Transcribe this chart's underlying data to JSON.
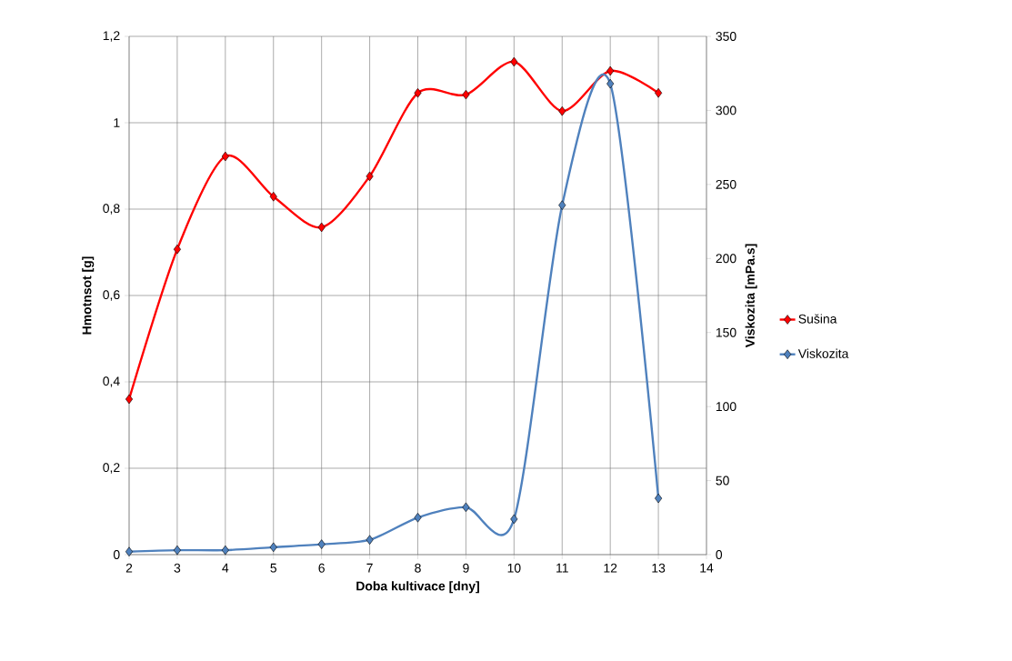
{
  "chart_data": {
    "type": "line",
    "xlabel": "Doba kultivace [dny]",
    "ylabel": "Hmotnsot [g]",
    "y2label": "Viskozita [mPa.s]",
    "x": [
      2,
      3,
      4,
      5,
      6,
      7,
      8,
      9,
      10,
      11,
      12,
      13
    ],
    "series": [
      {
        "name": "Sušina",
        "color": "#ff0000",
        "values": [
          0.36,
          0.707,
          0.922,
          0.829,
          0.758,
          0.876,
          1.069,
          1.065,
          1.141,
          1.027,
          1.12,
          1.069
        ]
      },
      {
        "name": "Viskozita",
        "color": "#4f81bd",
        "axis": "y2",
        "values": [
          2,
          3,
          3,
          5,
          7,
          10,
          25,
          32,
          24,
          236,
          318,
          38
        ]
      }
    ],
    "xlim": [
      2,
      14
    ],
    "xticks": [
      2,
      3,
      4,
      5,
      6,
      7,
      8,
      9,
      10,
      11,
      12,
      13,
      14
    ],
    "ylim": [
      0,
      1.2
    ],
    "yticks": [
      0,
      {
        "value": 0.2,
        "label": "0,2"
      },
      {
        "value": 0.4,
        "label": "0,4"
      },
      {
        "value": 0.6,
        "label": "0,6"
      },
      {
        "value": 0.8,
        "label": "0,8"
      },
      1,
      {
        "value": 1.2,
        "label": "1,2"
      }
    ],
    "y2lim": [
      0,
      350
    ],
    "y2ticks": [
      0,
      50,
      100,
      150,
      200,
      250,
      300,
      350
    ],
    "grid": true,
    "legend": "right",
    "marker": "diamond",
    "line_style": "solid"
  }
}
